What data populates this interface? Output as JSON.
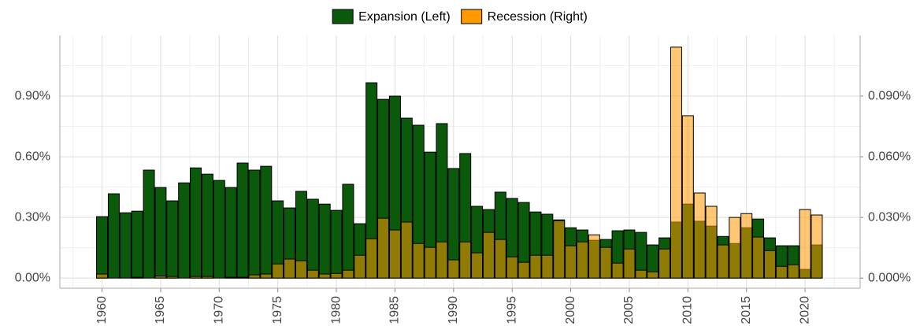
{
  "chart_data": {
    "type": "bar",
    "x": [
      1960,
      1961,
      1962,
      1963,
      1964,
      1965,
      1966,
      1967,
      1968,
      1969,
      1970,
      1971,
      1972,
      1973,
      1974,
      1975,
      1976,
      1977,
      1978,
      1979,
      1980,
      1981,
      1982,
      1983,
      1984,
      1985,
      1986,
      1987,
      1988,
      1989,
      1990,
      1991,
      1992,
      1993,
      1994,
      1995,
      1996,
      1997,
      1998,
      1999,
      2000,
      2001,
      2002,
      2003,
      2004,
      2005,
      2006,
      2007,
      2008,
      2009,
      2010,
      2011,
      2012,
      2013,
      2014,
      2015,
      2016,
      2017,
      2018,
      2019,
      2020,
      2021
    ],
    "series": [
      {
        "name": "Expansion (Left)",
        "color": "#0b5a0b",
        "values": [
          0.304,
          0.417,
          0.323,
          0.331,
          0.534,
          0.448,
          0.382,
          0.471,
          0.545,
          0.514,
          0.483,
          0.448,
          0.569,
          0.534,
          0.553,
          0.382,
          0.347,
          0.429,
          0.39,
          0.366,
          0.335,
          0.464,
          0.269,
          0.966,
          0.884,
          0.9,
          0.791,
          0.756,
          0.623,
          0.764,
          0.542,
          0.616,
          0.355,
          0.339,
          0.425,
          0.394,
          0.374,
          0.327,
          0.316,
          0.288,
          0.249,
          0.238,
          0.187,
          0.191,
          0.234,
          0.238,
          0.226,
          0.164,
          0.199,
          0.277,
          0.366,
          0.281,
          0.257,
          0.206,
          0.171,
          0.249,
          0.292,
          0.199,
          0.16,
          0.16,
          0.043,
          0.164
        ]
      },
      {
        "name": "Recession (Right)",
        "color": "#ff9900",
        "axis": "y2",
        "values": [
          0.002,
          0,
          0,
          0.0004,
          0,
          0.001,
          0.0008,
          0,
          0.0008,
          0.0008,
          0,
          0.0004,
          0.0004,
          0.0016,
          0.002,
          0.007,
          0.0094,
          0.0086,
          0.0039,
          0.002,
          0.0023,
          0.0039,
          0.0113,
          0.0195,
          0.0296,
          0.0238,
          0.0277,
          0.0171,
          0.0152,
          0.0179,
          0.009,
          0.0179,
          0.0125,
          0.0226,
          0.0191,
          0.0105,
          0.0078,
          0.0113,
          0.0113,
          0.0284,
          0.016,
          0.0179,
          0.0214,
          0.0152,
          0.0074,
          0.0144,
          0.0039,
          0.0031,
          0.0144,
          0.1142,
          0.0803,
          0.0421,
          0.0355,
          0.0164,
          0.03,
          0.0319,
          0.0203,
          0.0136,
          0.0058,
          0.0066,
          0.0339,
          0.0312
        ]
      }
    ],
    "xlim": [
      1956.4,
      2024.7
    ],
    "xticks": [
      1960,
      1965,
      1970,
      1975,
      1980,
      1985,
      1990,
      1995,
      2000,
      2005,
      2010,
      2015,
      2020
    ],
    "ylim": [
      -0.05,
      1.2
    ],
    "yticks": [
      {
        "value": 0,
        "label": "0.00%"
      },
      {
        "value": 0.3,
        "label": "0.30%"
      },
      {
        "value": 0.6,
        "label": "0.60%"
      },
      {
        "value": 0.9,
        "label": "0.90%"
      }
    ],
    "y2lim": [
      -0.005,
      0.12
    ],
    "y2ticks": [
      {
        "value": 0,
        "label": "0.000%"
      },
      {
        "value": 0.03,
        "label": "0.030%"
      },
      {
        "value": 0.06,
        "label": "0.060%"
      },
      {
        "value": 0.09,
        "label": "0.090%"
      }
    ],
    "grid": true,
    "legend": "top"
  }
}
